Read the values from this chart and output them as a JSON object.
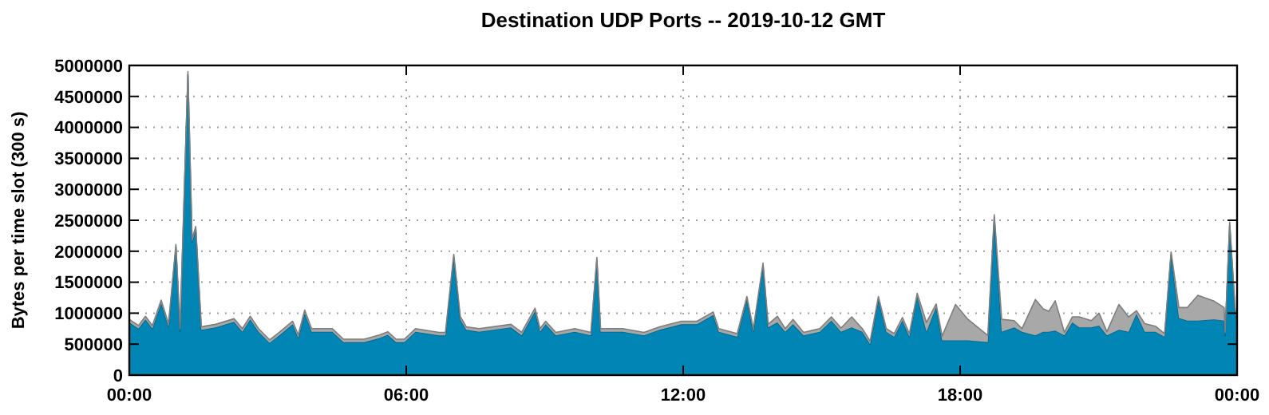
{
  "chart_data": {
    "type": "area",
    "title": "Destination UDP Ports -- 2019-10-12 GMT",
    "ylabel": "Bytes per time slot (300 s)",
    "stacked": true,
    "grid": true,
    "x": [
      0,
      0.2,
      0.35,
      0.5,
      0.69,
      0.85,
      1.01,
      1.1,
      1.27,
      1.36,
      1.44,
      1.56,
      1.87,
      2.27,
      2.45,
      2.62,
      2.8,
      3.04,
      3.25,
      3.54,
      3.66,
      3.8,
      3.95,
      4.4,
      4.64,
      5.09,
      5.43,
      5.6,
      5.78,
      5.96,
      6.2,
      6.71,
      6.85,
      7.03,
      7.17,
      7.3,
      7.58,
      8.27,
      8.5,
      8.79,
      8.9,
      9.02,
      9.24,
      9.65,
      10.0,
      10.13,
      10.21,
      10.69,
      11.15,
      11.49,
      11.96,
      12.3,
      12.65,
      12.77,
      13.17,
      13.38,
      13.52,
      13.73,
      13.84,
      14.04,
      14.21,
      14.38,
      14.61,
      14.96,
      15.21,
      15.42,
      15.65,
      15.88,
      16.05,
      16.23,
      16.4,
      16.57,
      16.75,
      16.9,
      17.07,
      17.27,
      17.48,
      17.61,
      17.9,
      18.17,
      18.6,
      18.74,
      18.9,
      19.17,
      19.34,
      19.63,
      19.8,
      19.92,
      20.06,
      20.26,
      20.43,
      20.58,
      20.84,
      21.01,
      21.18,
      21.44,
      21.65,
      21.82,
      22.0,
      22.23,
      22.43,
      22.57,
      22.74,
      22.92,
      23.15,
      23.49,
      23.72,
      23.74,
      23.84,
      23.96,
      24
    ],
    "series": [
      {
        "color": "#0085b5",
        "values": [
          850000,
          750000,
          900000,
          750000,
          1160000,
          780000,
          2060000,
          700000,
          4850000,
          2150000,
          2350000,
          730000,
          770000,
          860000,
          700000,
          900000,
          700000,
          520000,
          640000,
          820000,
          600000,
          1000000,
          700000,
          700000,
          530000,
          530000,
          600000,
          650000,
          530000,
          530000,
          700000,
          640000,
          640000,
          1900000,
          900000,
          730000,
          700000,
          770000,
          640000,
          1030000,
          700000,
          820000,
          640000,
          700000,
          640000,
          1850000,
          700000,
          700000,
          640000,
          730000,
          820000,
          820000,
          970000,
          700000,
          620000,
          1220000,
          700000,
          1760000,
          770000,
          850000,
          700000,
          820000,
          640000,
          700000,
          880000,
          700000,
          770000,
          700000,
          500000,
          1220000,
          700000,
          620000,
          880000,
          620000,
          1270000,
          700000,
          1100000,
          560000,
          560000,
          560000,
          530000,
          2540000,
          700000,
          770000,
          700000,
          640000,
          700000,
          700000,
          720000,
          640000,
          850000,
          770000,
          770000,
          800000,
          640000,
          730000,
          700000,
          990000,
          700000,
          700000,
          620000,
          1940000,
          920000,
          880000,
          880000,
          900000,
          880000,
          640000,
          2420000,
          1000000,
          900000
        ]
      },
      {
        "color": "#a8a8a8",
        "values": [
          50000,
          50000,
          50000,
          50000,
          50000,
          50000,
          50000,
          50000,
          50000,
          50000,
          50000,
          50000,
          50000,
          50000,
          50000,
          50000,
          50000,
          50000,
          50000,
          50000,
          50000,
          50000,
          50000,
          50000,
          50000,
          50000,
          50000,
          50000,
          50000,
          50000,
          50000,
          50000,
          50000,
          50000,
          50000,
          50000,
          50000,
          50000,
          50000,
          50000,
          50000,
          50000,
          50000,
          50000,
          50000,
          50000,
          50000,
          50000,
          50000,
          50000,
          50000,
          50000,
          50000,
          50000,
          50000,
          50000,
          50000,
          50000,
          50000,
          100000,
          50000,
          80000,
          50000,
          50000,
          60000,
          60000,
          170000,
          50000,
          50000,
          50000,
          50000,
          50000,
          50000,
          50000,
          50000,
          150000,
          50000,
          70000,
          580000,
          340000,
          110000,
          50000,
          200000,
          110000,
          50000,
          580000,
          370000,
          330000,
          480000,
          50000,
          90000,
          170000,
          110000,
          200000,
          60000,
          410000,
          240000,
          50000,
          130000,
          90000,
          50000,
          50000,
          170000,
          210000,
          410000,
          300000,
          210000,
          50000,
          50000,
          50000,
          50000
        ]
      }
    ],
    "xlim": [
      0,
      24
    ],
    "xticks": [
      {
        "value": 0,
        "label": "00:00"
      },
      {
        "value": 6,
        "label": "06:00"
      },
      {
        "value": 12,
        "label": "12:00"
      },
      {
        "value": 18,
        "label": "18:00"
      },
      {
        "value": 24,
        "label": "00:00"
      }
    ],
    "ylim": [
      0,
      5000000
    ],
    "yticks": [
      0,
      500000,
      1000000,
      1500000,
      2000000,
      2500000,
      3000000,
      3500000,
      4000000,
      4500000,
      5000000
    ]
  }
}
